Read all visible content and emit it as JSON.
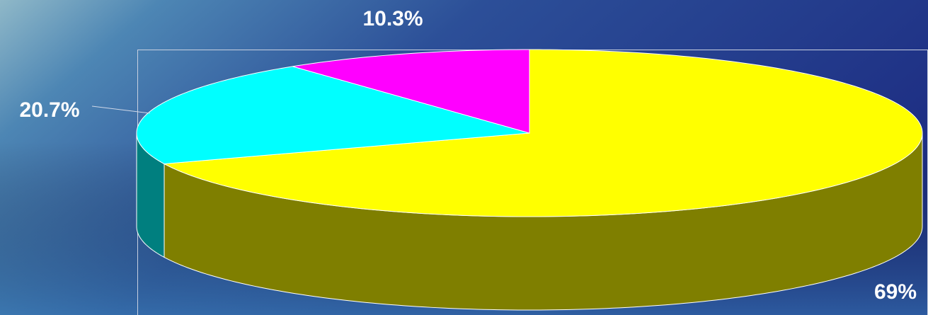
{
  "chart_data": {
    "type": "pie",
    "categories": [
      null,
      null,
      null
    ],
    "values": [
      69,
      20.7,
      10.3
    ],
    "value_labels": [
      "69%",
      "20.7%",
      "10.3%"
    ],
    "colors": [
      "#ffff00",
      "#00ffff",
      "#ff00ff"
    ]
  }
}
